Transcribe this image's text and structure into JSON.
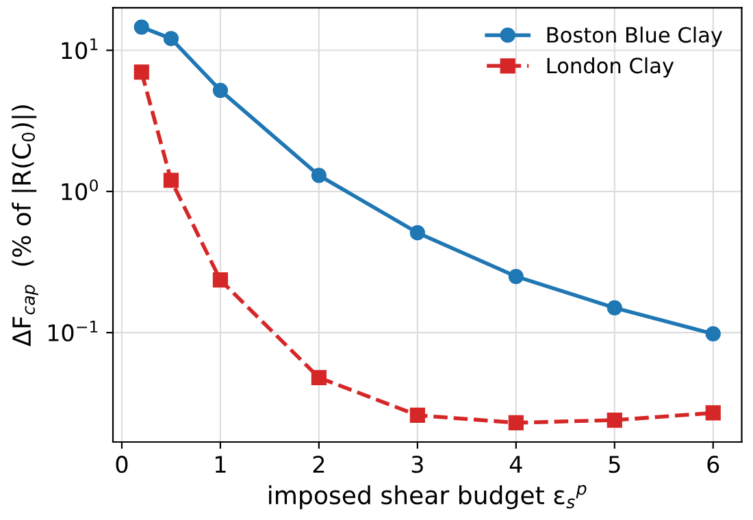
{
  "chart_data": {
    "type": "line",
    "xlabel": "imposed shear budget ε$_{s}$$^{p}$",
    "ylabel": "ΔF$_{cap}$  (% of |R(C$_{0}$)|)",
    "x": [
      0.2,
      0.5,
      1,
      2,
      3,
      4,
      5,
      6
    ],
    "series": [
      {
        "name": "Boston Blue Clay",
        "color": "#1f77b4",
        "marker": "circle",
        "line_style": "solid",
        "values": [
          14.6,
          12.1,
          5.2,
          1.3,
          0.51,
          0.25,
          0.15,
          0.098
        ]
      },
      {
        "name": "London Clay",
        "color": "#d62728",
        "marker": "square",
        "line_style": "dashed",
        "values": [
          7.0,
          1.2,
          0.236,
          0.048,
          0.026,
          0.023,
          0.024,
          0.027
        ]
      }
    ],
    "log": "y",
    "xlim": [
      -0.09,
      6.29
    ],
    "ylim": [
      0.0168,
      20
    ],
    "xticks": [
      0,
      1,
      2,
      3,
      4,
      5,
      6
    ],
    "yticks": [
      {
        "value": 0.1,
        "label": "10$^{−1}$"
      },
      {
        "value": 1,
        "label": "10$^{0}$"
      },
      {
        "value": 10,
        "label": "10$^{1}$"
      }
    ],
    "grid": true,
    "legend": "top right"
  }
}
